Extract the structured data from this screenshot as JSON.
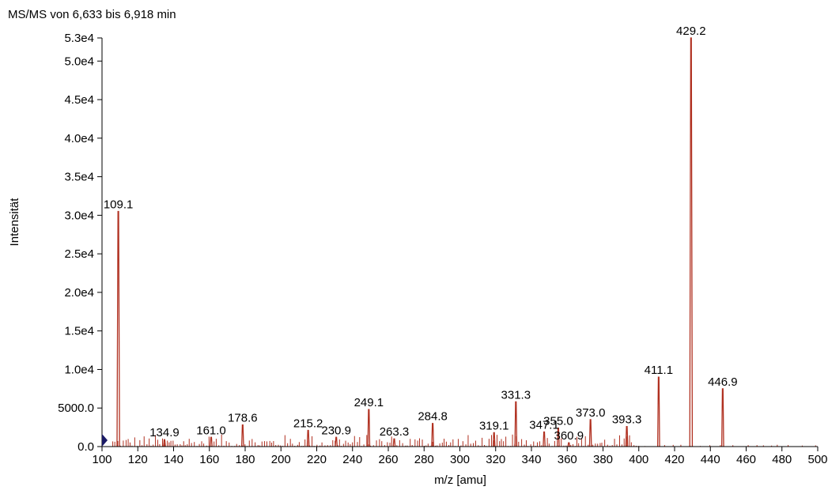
{
  "chart_data": {
    "type": "line",
    "title": "MS/MS von 6,633 bis 6,918 min",
    "xlabel": "m/z [amu]",
    "ylabel": "Intensität",
    "xlim": [
      100,
      500
    ],
    "ylim": [
      0,
      53000
    ],
    "x_ticks": [
      100,
      120,
      140,
      160,
      180,
      200,
      220,
      240,
      260,
      280,
      300,
      320,
      340,
      360,
      380,
      400,
      420,
      440,
      460,
      480,
      500
    ],
    "y_ticks": [
      {
        "value": 0,
        "label": "0.0"
      },
      {
        "value": 5000,
        "label": "5000.0"
      },
      {
        "value": 10000,
        "label": "1.0e4"
      },
      {
        "value": 15000,
        "label": "1.5e4"
      },
      {
        "value": 20000,
        "label": "2.0e4"
      },
      {
        "value": 25000,
        "label": "2.5e4"
      },
      {
        "value": 30000,
        "label": "3.0e4"
      },
      {
        "value": 35000,
        "label": "3.5e4"
      },
      {
        "value": 40000,
        "label": "4.0e4"
      },
      {
        "value": 45000,
        "label": "4.5e4"
      },
      {
        "value": 50000,
        "label": "5.0e4"
      },
      {
        "value": 53000,
        "label": "5.3e4"
      }
    ],
    "line_color": "#b03020",
    "peaks": [
      {
        "mz": 109.1,
        "intensity": 30500,
        "label": "109.1"
      },
      {
        "mz": 134.9,
        "intensity": 900,
        "label": "134.9"
      },
      {
        "mz": 161.0,
        "intensity": 1200,
        "label": "161.0"
      },
      {
        "mz": 178.6,
        "intensity": 2800,
        "label": "178.6"
      },
      {
        "mz": 215.2,
        "intensity": 2100,
        "label": "215.2"
      },
      {
        "mz": 230.9,
        "intensity": 1200,
        "label": "230.9"
      },
      {
        "mz": 249.1,
        "intensity": 4800,
        "label": "249.1"
      },
      {
        "mz": 263.3,
        "intensity": 1000,
        "label": "263.3"
      },
      {
        "mz": 284.8,
        "intensity": 3000,
        "label": "284.8"
      },
      {
        "mz": 319.1,
        "intensity": 1800,
        "label": "319.1"
      },
      {
        "mz": 331.3,
        "intensity": 5800,
        "label": "331.3"
      },
      {
        "mz": 347.1,
        "intensity": 1900,
        "label": "347.1"
      },
      {
        "mz": 355.0,
        "intensity": 2400,
        "label": "355.0"
      },
      {
        "mz": 360.9,
        "intensity": 500,
        "label": "360.9"
      },
      {
        "mz": 373.0,
        "intensity": 3500,
        "label": "373.0"
      },
      {
        "mz": 393.3,
        "intensity": 2600,
        "label": "393.3"
      },
      {
        "mz": 411.1,
        "intensity": 9000,
        "label": "411.1"
      },
      {
        "mz": 429.2,
        "intensity": 53000,
        "label": "429.2"
      },
      {
        "mz": 446.9,
        "intensity": 7500,
        "label": "446.9"
      }
    ]
  }
}
